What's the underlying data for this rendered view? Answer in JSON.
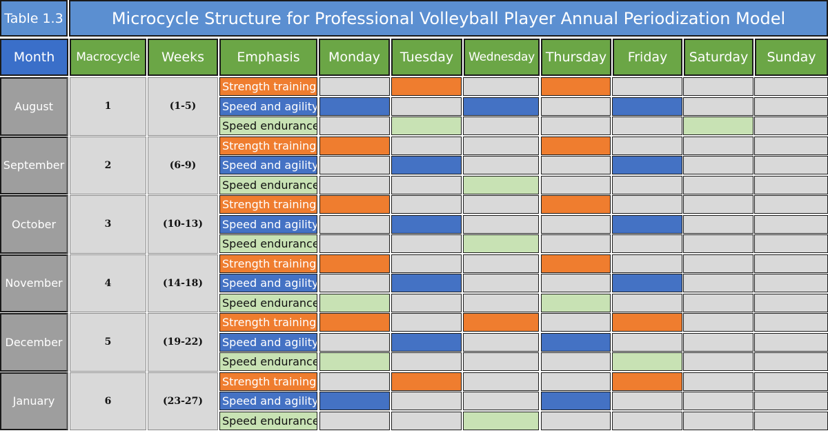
{
  "table_label": "Table 1.3",
  "title": "Microcycle Structure for Professional Volleyball Player Annual Periodization Model",
  "headers": {
    "month": "Month",
    "macrocycle": "Macrocycle",
    "weeks": "Weeks",
    "emphasis": "Emphasis",
    "days": [
      "Monday",
      "Tuesday",
      "Wednesday",
      "Thursday",
      "Friday",
      "Saturday",
      "Sunday"
    ]
  },
  "emphasis_labels": {
    "strength": "Strength training",
    "speed": "Speed and agility",
    "endurance": "Speed endurance"
  },
  "colors": {
    "strength": "#ef7d2f",
    "speed": "#4472c4",
    "endurance": "#c8e2b4",
    "empty": "#d9d9d9",
    "header_green": "#6ba646",
    "header_blue": "#3a6fc9",
    "title_blue": "#5b8fd1"
  },
  "rows": [
    {
      "month": "August",
      "macrocycle": "1",
      "weeks": "(1-5)",
      "strength": [
        0,
        1,
        0,
        1,
        0,
        0,
        0
      ],
      "speed": [
        1,
        0,
        1,
        0,
        1,
        0,
        0
      ],
      "endurance": [
        0,
        1,
        0,
        0,
        0,
        1,
        0
      ]
    },
    {
      "month": "September",
      "macrocycle": "2",
      "weeks": "(6-9)",
      "strength": [
        1,
        0,
        0,
        1,
        0,
        0,
        0
      ],
      "speed": [
        0,
        1,
        0,
        0,
        1,
        0,
        0
      ],
      "endurance": [
        0,
        0,
        1,
        0,
        0,
        0,
        0
      ]
    },
    {
      "month": "October",
      "macrocycle": "3",
      "weeks": "(10-13)",
      "strength": [
        1,
        0,
        0,
        1,
        0,
        0,
        0
      ],
      "speed": [
        0,
        1,
        0,
        0,
        1,
        0,
        0
      ],
      "endurance": [
        0,
        0,
        1,
        0,
        0,
        0,
        0
      ]
    },
    {
      "month": "November",
      "macrocycle": "4",
      "weeks": "(14-18)",
      "strength": [
        1,
        0,
        0,
        1,
        0,
        0,
        0
      ],
      "speed": [
        0,
        1,
        0,
        0,
        1,
        0,
        0
      ],
      "endurance": [
        1,
        0,
        0,
        1,
        0,
        0,
        0
      ]
    },
    {
      "month": "December",
      "macrocycle": "5",
      "weeks": "(19-22)",
      "strength": [
        1,
        0,
        1,
        0,
        1,
        0,
        0
      ],
      "speed": [
        0,
        1,
        0,
        1,
        0,
        0,
        0
      ],
      "endurance": [
        1,
        0,
        0,
        0,
        1,
        0,
        0
      ]
    },
    {
      "month": "January",
      "macrocycle": "6",
      "weeks": "(23-27)",
      "strength": [
        0,
        1,
        0,
        0,
        1,
        0,
        0
      ],
      "speed": [
        1,
        0,
        0,
        1,
        0,
        0,
        0
      ],
      "endurance": [
        0,
        0,
        1,
        0,
        0,
        0,
        0
      ]
    }
  ]
}
